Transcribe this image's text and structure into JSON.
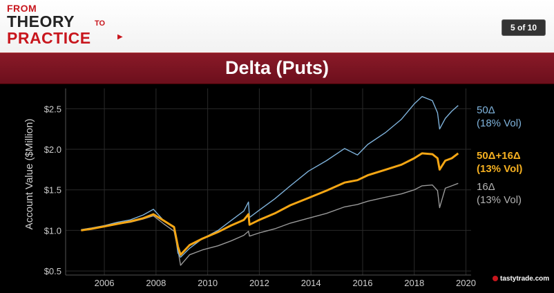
{
  "header": {
    "logo": {
      "from": "FROM",
      "theory": "THEORY",
      "to": "TO",
      "practice": "PRACTICE"
    },
    "page_indicator": "5 of 10"
  },
  "slide_title": "Delta (Puts)",
  "brand": "tastytrade.com",
  "chart_data": {
    "type": "line",
    "ylabel": "Account Value ($Million)",
    "xlabel": "",
    "x_ticks": [
      "2006",
      "2008",
      "2010",
      "2012",
      "2014",
      "2016",
      "2018",
      "2020"
    ],
    "y_ticks": [
      "$0.5",
      "$1.0",
      "$1.5",
      "$2.0",
      "$2.5"
    ],
    "xlim": [
      2004.5,
      2020.2
    ],
    "ylim": [
      0.45,
      2.75
    ],
    "series": [
      {
        "name": "50Δ (18% Vol)",
        "label_lines": [
          "50Δ",
          "(18% Vol)"
        ],
        "color": "#7fb3dc",
        "x": [
          2005.1,
          2005.5,
          2006.0,
          2006.5,
          2007.0,
          2007.5,
          2007.9,
          2008.3,
          2008.7,
          2008.85,
          2008.95,
          2009.3,
          2009.8,
          2010.4,
          2010.9,
          2011.4,
          2011.58,
          2011.62,
          2012.0,
          2012.6,
          2013.2,
          2013.9,
          2014.6,
          2015.3,
          2015.8,
          2016.2,
          2016.9,
          2017.5,
          2018.0,
          2018.3,
          2018.7,
          2018.9,
          2018.98,
          2019.2,
          2019.45,
          2019.7
        ],
        "y": [
          1.01,
          1.03,
          1.06,
          1.1,
          1.13,
          1.19,
          1.26,
          1.12,
          1.05,
          0.72,
          0.67,
          0.78,
          0.9,
          1.0,
          1.12,
          1.24,
          1.35,
          1.16,
          1.25,
          1.39,
          1.55,
          1.73,
          1.86,
          2.01,
          1.93,
          2.06,
          2.21,
          2.37,
          2.56,
          2.65,
          2.6,
          2.45,
          2.25,
          2.38,
          2.47,
          2.54
        ]
      },
      {
        "name": "50Δ+16Δ (13% Vol)",
        "label_lines": [
          "50Δ+16Δ",
          "(13% Vol)"
        ],
        "color": "#f5a614",
        "x": [
          2005.1,
          2005.5,
          2006.0,
          2006.5,
          2007.0,
          2007.5,
          2007.9,
          2008.3,
          2008.7,
          2008.85,
          2008.95,
          2009.3,
          2009.8,
          2010.4,
          2010.9,
          2011.4,
          2011.58,
          2011.62,
          2012.0,
          2012.6,
          2013.2,
          2013.9,
          2014.6,
          2015.3,
          2015.8,
          2016.2,
          2016.9,
          2017.5,
          2018.0,
          2018.3,
          2018.7,
          2018.9,
          2018.98,
          2019.2,
          2019.45,
          2019.7
        ],
        "y": [
          1.0,
          1.02,
          1.05,
          1.08,
          1.11,
          1.15,
          1.2,
          1.12,
          1.04,
          0.8,
          0.7,
          0.82,
          0.9,
          0.98,
          1.06,
          1.13,
          1.2,
          1.07,
          1.13,
          1.21,
          1.31,
          1.4,
          1.49,
          1.59,
          1.62,
          1.68,
          1.75,
          1.81,
          1.89,
          1.95,
          1.94,
          1.89,
          1.75,
          1.86,
          1.89,
          1.95
        ]
      },
      {
        "name": "16Δ (13% Vol)",
        "label_lines": [
          "16Δ",
          "(13% Vol)"
        ],
        "color": "#9a9a9a",
        "x": [
          2005.1,
          2005.5,
          2006.0,
          2006.5,
          2007.0,
          2007.5,
          2007.9,
          2008.3,
          2008.7,
          2008.85,
          2008.95,
          2009.3,
          2009.8,
          2010.4,
          2010.9,
          2011.4,
          2011.58,
          2011.62,
          2012.0,
          2012.6,
          2013.2,
          2013.9,
          2014.6,
          2015.3,
          2015.8,
          2016.2,
          2016.9,
          2017.5,
          2018.0,
          2018.3,
          2018.7,
          2018.9,
          2018.98,
          2019.2,
          2019.45,
          2019.7
        ],
        "y": [
          1.0,
          1.02,
          1.05,
          1.08,
          1.1,
          1.14,
          1.18,
          1.08,
          0.99,
          0.76,
          0.57,
          0.7,
          0.76,
          0.81,
          0.87,
          0.94,
          0.99,
          0.93,
          0.97,
          1.02,
          1.09,
          1.15,
          1.21,
          1.29,
          1.32,
          1.36,
          1.41,
          1.45,
          1.5,
          1.55,
          1.56,
          1.49,
          1.28,
          1.52,
          1.55,
          1.58
        ]
      }
    ]
  }
}
